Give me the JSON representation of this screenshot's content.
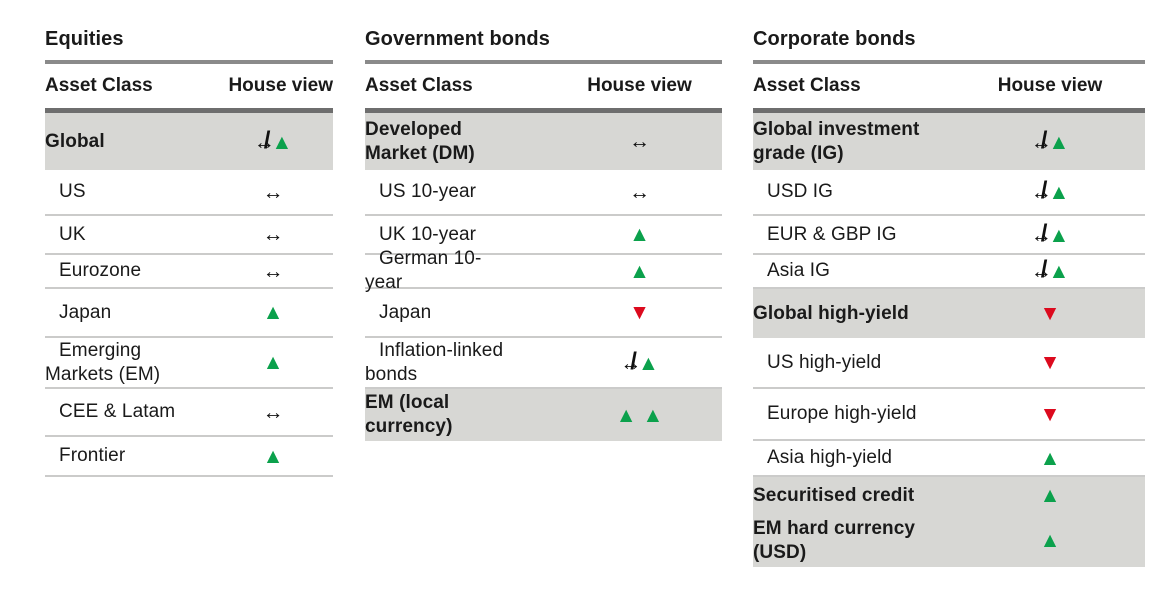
{
  "colors": {
    "up_green": "#0BA14C",
    "down_red": "#DC0A1E",
    "highlight_gray": "#D7D7D4",
    "rule_dark": "#6E6E6E",
    "rule_medium": "#8A8A8A",
    "rule_light": "#CBCBCA",
    "text": "#1A1A1A",
    "page_bg": "#FFFFFF"
  },
  "column_headers": {
    "asset_class": "Asset Class",
    "house_view": "House view"
  },
  "symbols": {
    "sideways": "↔",
    "slash": "/",
    "up": "▲",
    "down": "▼"
  },
  "tables": [
    {
      "title": "Equities",
      "rows": [
        {
          "label": "Global",
          "view": "sideways_to_up",
          "highlight": true
        },
        {
          "label": "US",
          "view": "sideways",
          "highlight": false
        },
        {
          "label": "UK",
          "view": "sideways",
          "highlight": false
        },
        {
          "label": "Eurozone",
          "view": "sideways",
          "highlight": false
        },
        {
          "label": "Japan",
          "view": "up",
          "highlight": false
        },
        {
          "label": "Emerging Markets (EM)",
          "view": "up",
          "highlight": false
        },
        {
          "label": "CEE & Latam",
          "view": "sideways",
          "highlight": false
        },
        {
          "label": "Frontier",
          "view": "up",
          "highlight": false
        }
      ]
    },
    {
      "title": "Government bonds",
      "rows": [
        {
          "label": "Developed Market (DM)",
          "view": "sideways",
          "highlight": true
        },
        {
          "label": "US 10-year",
          "view": "sideways",
          "highlight": false
        },
        {
          "label": "UK 10-year",
          "view": "up",
          "highlight": false
        },
        {
          "label": "German 10-year",
          "view": "up",
          "highlight": false
        },
        {
          "label": "Japan",
          "view": "down",
          "highlight": false
        },
        {
          "label": "Inflation-linked bonds",
          "view": "sideways_to_up",
          "highlight": false
        },
        {
          "label": "EM (local currency)",
          "view": "double_up",
          "highlight": true
        }
      ]
    },
    {
      "title": "Corporate bonds",
      "rows": [
        {
          "label": "Global investment grade (IG)",
          "view": "sideways_to_up",
          "highlight": true
        },
        {
          "label": "USD IG",
          "view": "sideways_to_up",
          "highlight": false
        },
        {
          "label": "EUR & GBP IG",
          "view": "sideways_to_up",
          "highlight": false
        },
        {
          "label": "Asia IG",
          "view": "sideways_to_up",
          "highlight": false
        },
        {
          "label": "Global high-yield",
          "view": "down",
          "highlight": true
        },
        {
          "label": "US high-yield",
          "view": "down",
          "highlight": false
        },
        {
          "label": "Europe high-yield",
          "view": "down",
          "highlight": false
        },
        {
          "label": "Asia high-yield",
          "view": "up",
          "highlight": false
        },
        {
          "label": "Securitised credit",
          "view": "up",
          "highlight": true
        },
        {
          "label": "EM hard currency (USD)",
          "view": "up",
          "highlight": true
        }
      ]
    }
  ]
}
